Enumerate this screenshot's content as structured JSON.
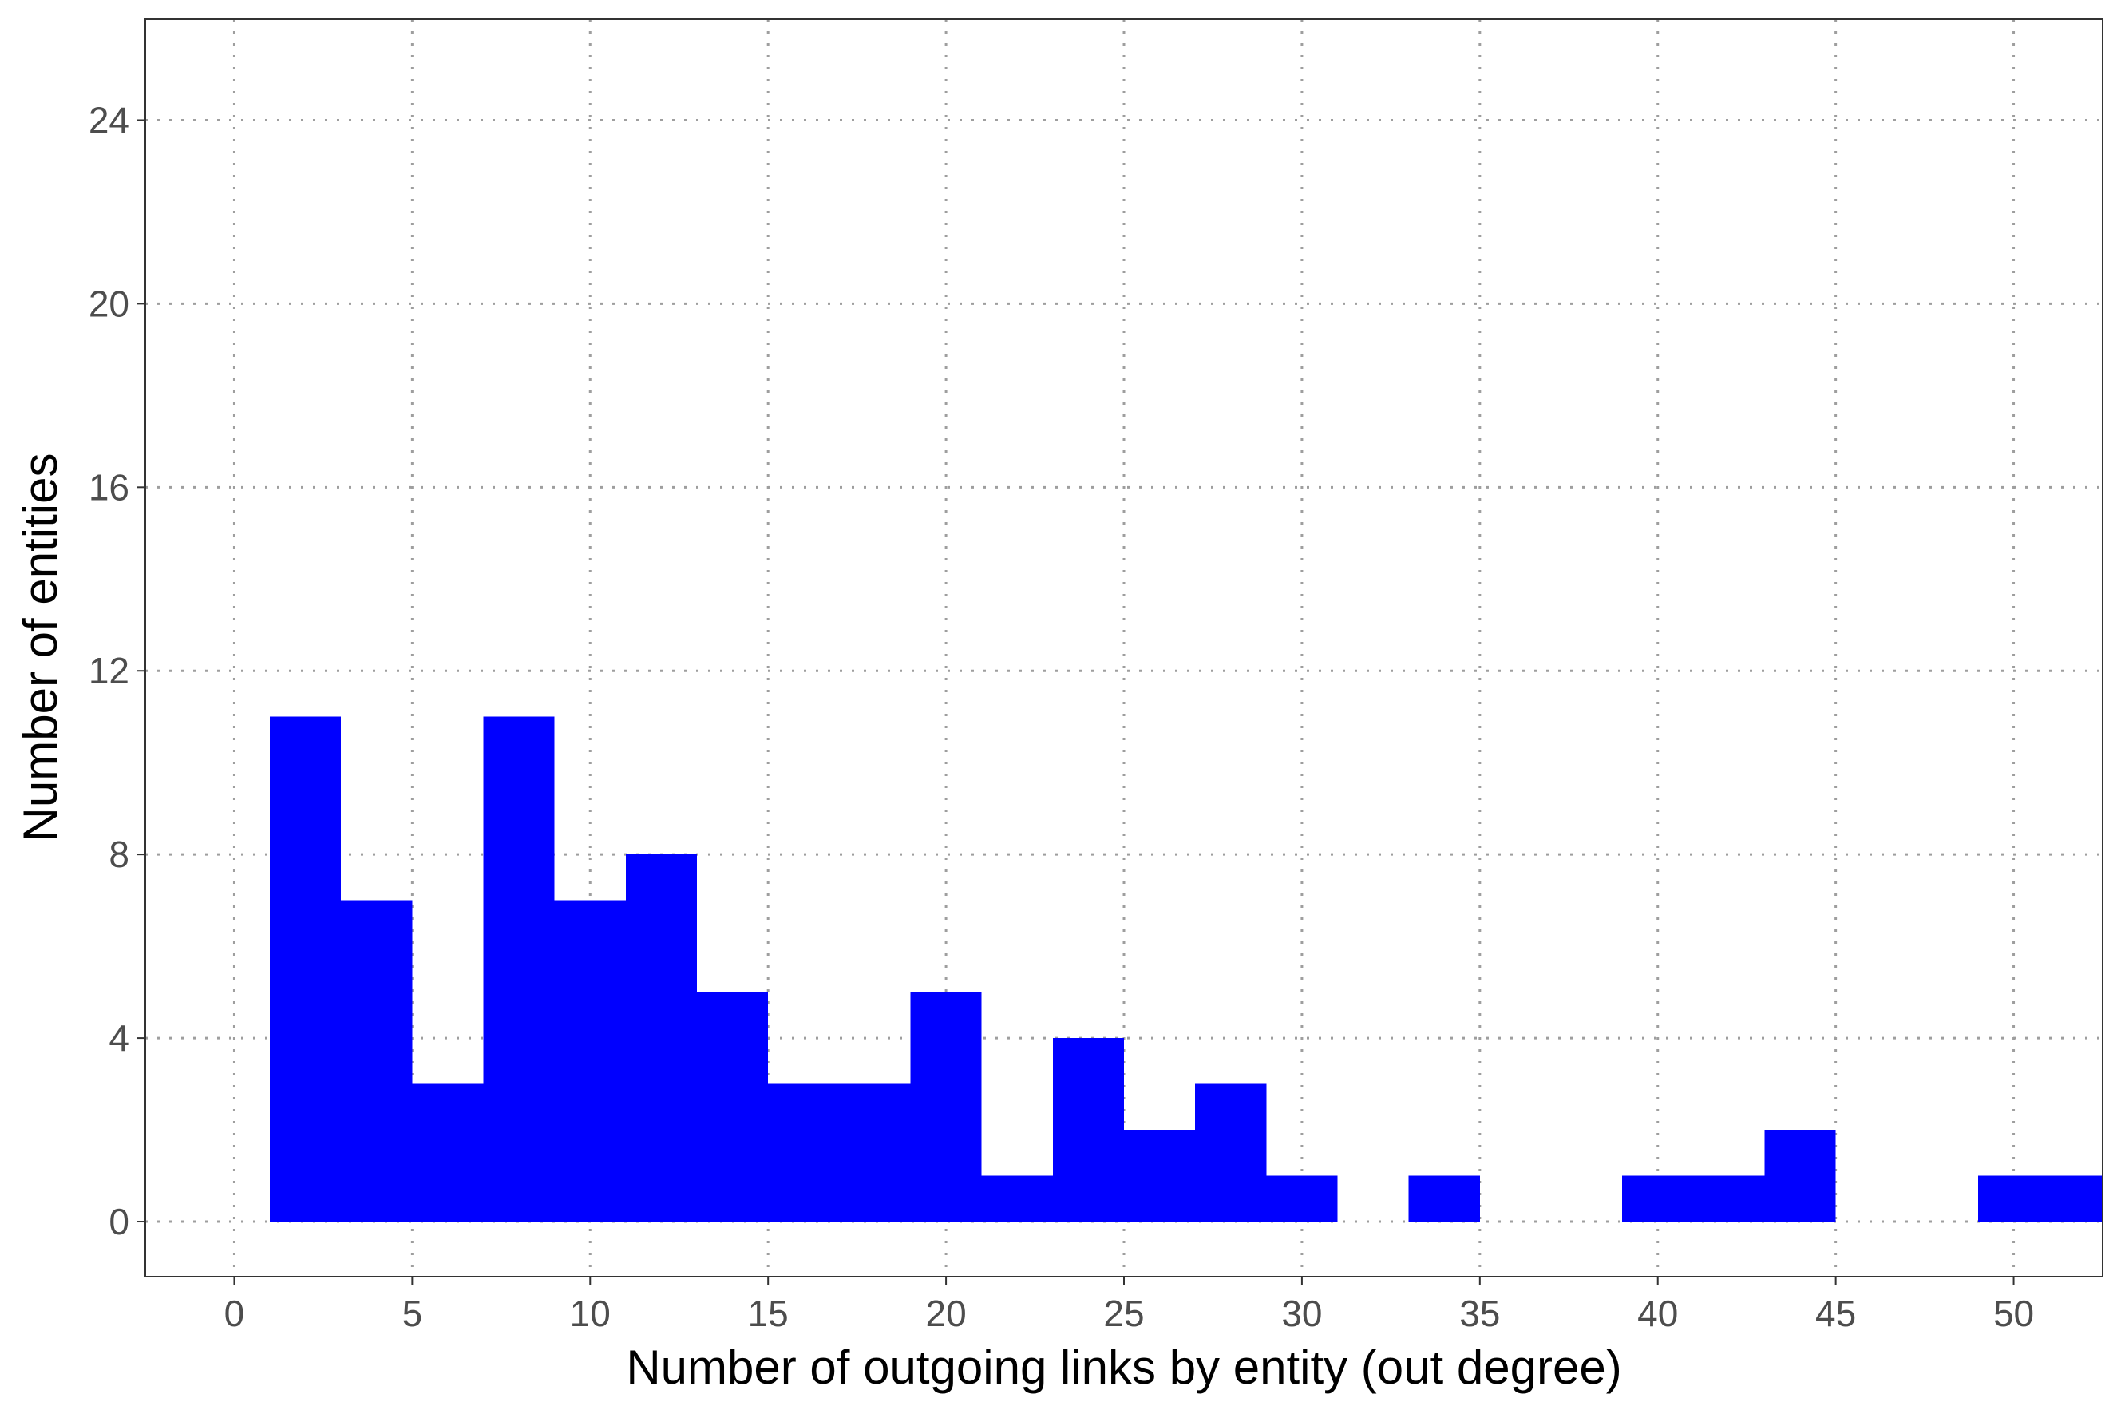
{
  "chart_data": {
    "type": "histogram",
    "title": "",
    "xlabel": "Number of outgoing links by entity (out degree)",
    "ylabel": "Number of entities",
    "xlim": [
      -2.5,
      52.5
    ],
    "ylim": [
      -1.2,
      26.2
    ],
    "xticks": [
      0,
      5,
      10,
      15,
      20,
      25,
      30,
      35,
      40,
      45,
      50
    ],
    "yticks": [
      0,
      4,
      8,
      12,
      16,
      20,
      24
    ],
    "grid": "dotted",
    "bar_color": "#0000ff",
    "bins": [
      {
        "x0": 1,
        "x1": 3,
        "count": 11
      },
      {
        "x0": 3,
        "x1": 5,
        "count": 7
      },
      {
        "x0": 5,
        "x1": 7,
        "count": 3
      },
      {
        "x0": 7,
        "x1": 9,
        "count": 11
      },
      {
        "x0": 9,
        "x1": 11,
        "count": 7
      },
      {
        "x0": 11,
        "x1": 13,
        "count": 8
      },
      {
        "x0": 13,
        "x1": 15,
        "count": 5
      },
      {
        "x0": 15,
        "x1": 17,
        "count": 3
      },
      {
        "x0": 17,
        "x1": 19,
        "count": 3
      },
      {
        "x0": 19,
        "x1": 21,
        "count": 5
      },
      {
        "x0": 21,
        "x1": 23,
        "count": 1
      },
      {
        "x0": 23,
        "x1": 25,
        "count": 4
      },
      {
        "x0": 25,
        "x1": 27,
        "count": 2
      },
      {
        "x0": 27,
        "x1": 29,
        "count": 3
      },
      {
        "x0": 29,
        "x1": 31,
        "count": 1
      },
      {
        "x0": 31,
        "x1": 33,
        "count": 0
      },
      {
        "x0": 33,
        "x1": 35,
        "count": 1
      },
      {
        "x0": 35,
        "x1": 37,
        "count": 0
      },
      {
        "x0": 37,
        "x1": 39,
        "count": 0
      },
      {
        "x0": 39,
        "x1": 41,
        "count": 1
      },
      {
        "x0": 41,
        "x1": 43,
        "count": 1
      },
      {
        "x0": 43,
        "x1": 45,
        "count": 2
      },
      {
        "x0": 45,
        "x1": 47,
        "count": 0
      },
      {
        "x0": 47,
        "x1": 49,
        "count": 0
      },
      {
        "x0": 49,
        "x1": 51,
        "count": 1
      },
      {
        "x0": 51,
        "x1": 53,
        "count": 1
      }
    ]
  }
}
